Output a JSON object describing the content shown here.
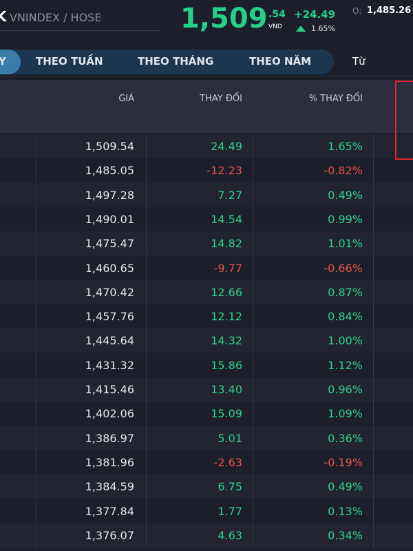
{
  "header": {
    "logo": "K",
    "symbol": "VNINDEX / HOSE",
    "price_int": "1,509",
    "price_dec": ".54",
    "currency": "VND",
    "change": "+24.49",
    "change_pct": "1.65%",
    "open_label": "O:",
    "open_value": "1,485.26"
  },
  "tabs": [
    "Y",
    "THEO TUẦN",
    "THEO THÁNG",
    "THEO NĂM",
    "Từ"
  ],
  "table": {
    "columns": [
      "GIÁ",
      "THAY ĐỔI",
      "% THAY ĐỔI"
    ],
    "rows": [
      [
        "1,509.54",
        "24.49",
        "1.65%"
      ],
      [
        "1,485.05",
        "-12.23",
        "-0.82%"
      ],
      [
        "1,497.28",
        "7.27",
        "0.49%"
      ],
      [
        "1,490.01",
        "14.54",
        "0.99%"
      ],
      [
        "1,475.47",
        "14.82",
        "1.01%"
      ],
      [
        "1,460.65",
        "-9.77",
        "-0.66%"
      ],
      [
        "1,470.42",
        "12.66",
        "0.87%"
      ],
      [
        "1,457.76",
        "12.12",
        "0.84%"
      ],
      [
        "1,445.64",
        "14.32",
        "1.00%"
      ],
      [
        "1,431.32",
        "15.86",
        "1.12%"
      ],
      [
        "1,415.46",
        "13.40",
        "0.96%"
      ],
      [
        "1,402.06",
        "15.09",
        "1.09%"
      ],
      [
        "1,386.97",
        "5.01",
        "0.36%"
      ],
      [
        "1,381.96",
        "-2.63",
        "-0.19%"
      ],
      [
        "1,384.59",
        "6.75",
        "0.49%"
      ],
      [
        "1,377.84",
        "1.77",
        "0.13%"
      ],
      [
        "1,376.07",
        "4.63",
        "0.34%"
      ]
    ]
  }
}
